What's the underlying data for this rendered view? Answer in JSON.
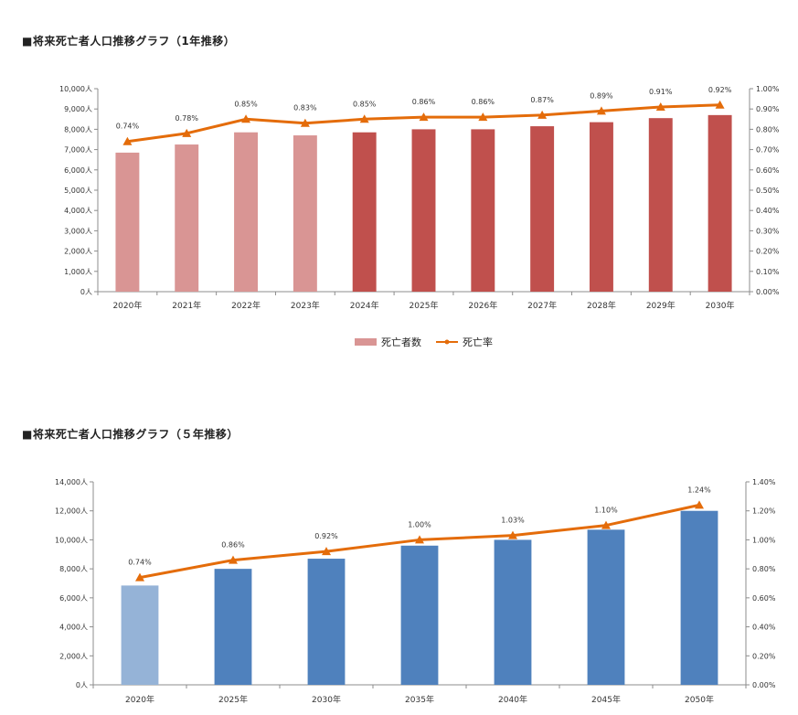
{
  "section1": {
    "title": "■将来死亡者人口推移グラフ（1年推移）"
  },
  "section2": {
    "title": "■将来死亡者人口推移グラフ（５年推移）"
  },
  "chart_data": [
    {
      "type": "bar",
      "categories": [
        "2020年",
        "2021年",
        "2022年",
        "2023年",
        "2024年",
        "2025年",
        "2026年",
        "2027年",
        "2028年",
        "2029年",
        "2030年"
      ],
      "series": [
        {
          "name": "死亡者数",
          "kind": "bar",
          "values": [
            6850,
            7250,
            7850,
            7700,
            7850,
            8000,
            8000,
            8150,
            8350,
            8550,
            8700
          ],
          "colors": [
            "#d99594",
            "#d99594",
            "#d99594",
            "#d99594",
            "#c0504d",
            "#c0504d",
            "#c0504d",
            "#c0504d",
            "#c0504d",
            "#c0504d",
            "#c0504d"
          ]
        },
        {
          "name": "死亡率",
          "kind": "line",
          "axis": "right",
          "color": "#e46c0a",
          "values": [
            0.74,
            0.78,
            0.85,
            0.83,
            0.85,
            0.86,
            0.86,
            0.87,
            0.89,
            0.91,
            0.92
          ],
          "labels": [
            "0.74%",
            "0.78%",
            "0.85%",
            "0.83%",
            "0.85%",
            "0.86%",
            "0.86%",
            "0.87%",
            "0.89%",
            "0.91%",
            "0.92%"
          ]
        }
      ],
      "ylim": [
        0,
        10000
      ],
      "y2lim": [
        0,
        1.0
      ],
      "yticks": [
        "0人",
        "1,000人",
        "2,000人",
        "3,000人",
        "4,000人",
        "5,000人",
        "6,000人",
        "7,000人",
        "8,000人",
        "9,000人",
        "10,000人"
      ],
      "y2ticks": [
        "0.00%",
        "0.10%",
        "0.20%",
        "0.30%",
        "0.40%",
        "0.50%",
        "0.60%",
        "0.70%",
        "0.80%",
        "0.90%",
        "1.00%"
      ],
      "legend": [
        "死亡者数",
        "死亡率"
      ],
      "legend_position": "bottom"
    },
    {
      "type": "bar",
      "categories": [
        "2020年",
        "2025年",
        "2030年",
        "2035年",
        "2040年",
        "2045年",
        "2050年"
      ],
      "series": [
        {
          "kind": "bar",
          "values": [
            6850,
            8000,
            8700,
            9600,
            10000,
            10700,
            12000
          ],
          "colors": [
            "#95b3d7",
            "#4f81bd",
            "#4f81bd",
            "#4f81bd",
            "#4f81bd",
            "#4f81bd",
            "#4f81bd"
          ]
        },
        {
          "kind": "line",
          "axis": "right",
          "color": "#e46c0a",
          "values": [
            0.74,
            0.86,
            0.92,
            1.0,
            1.03,
            1.1,
            1.24
          ],
          "labels": [
            "0.74%",
            "0.86%",
            "0.92%",
            "1.00%",
            "1.03%",
            "1.10%",
            "1.24%"
          ]
        }
      ],
      "ylim": [
        0,
        14000
      ],
      "y2lim": [
        0,
        1.4
      ],
      "yticks": [
        "0人",
        "2,000人",
        "4,000人",
        "6,000人",
        "8,000人",
        "10,000人",
        "12,000人",
        "14,000人"
      ],
      "y2ticks": [
        "0.00%",
        "0.20%",
        "0.40%",
        "0.60%",
        "0.80%",
        "1.00%",
        "1.20%",
        "1.40%"
      ]
    }
  ]
}
